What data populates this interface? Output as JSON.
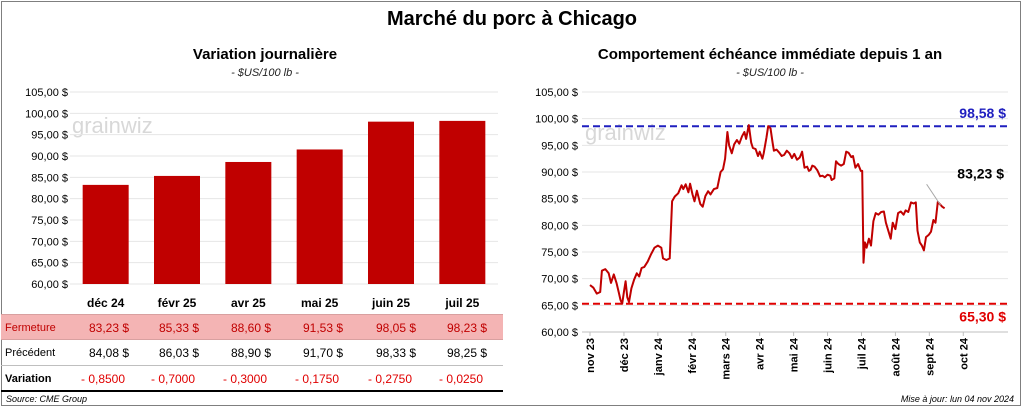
{
  "title": "Marché du porc à Chicago",
  "watermark": "grainwiz",
  "colors": {
    "bar": "#c00000",
    "line": "#c00000",
    "high": "#1f1fbf",
    "low": "#e00000",
    "fermeture_bg": "#f4b4b4",
    "variation": "#e00000"
  },
  "left_chart": {
    "title": "Variation  journalière",
    "subtitle": "- $US/100 lb -",
    "chart_data": {
      "type": "bar",
      "categories": [
        "déc 24",
        "févr 25",
        "avr 25",
        "mai 25",
        "juin 25",
        "juil 25"
      ],
      "values": [
        83.23,
        85.33,
        88.6,
        91.53,
        98.05,
        98.23
      ],
      "ylim": [
        60,
        105
      ],
      "yticks": [
        60,
        65,
        70,
        75,
        80,
        85,
        90,
        95,
        100,
        105
      ],
      "ytick_labels": [
        "60,00 $",
        "65,00 $",
        "70,00 $",
        "75,00 $",
        "80,00 $",
        "85,00 $",
        "90,00 $",
        "95,00 $",
        "100,00 $",
        "105,00 $"
      ]
    }
  },
  "table": {
    "rows": [
      {
        "label": "Fermeture",
        "values": [
          "83,23  $",
          "85,33  $",
          "88,60  $",
          "91,53  $",
          "98,05  $",
          "98,23  $"
        ]
      },
      {
        "label": "Précédent",
        "values": [
          "84,08  $",
          "86,03  $",
          "88,90  $",
          "91,70  $",
          "98,33  $",
          "98,25  $"
        ]
      },
      {
        "label": "Variation",
        "values": [
          "- 0,8500",
          "- 0,7000",
          "- 0,3000",
          "- 0,1750",
          "- 0,2750",
          "- 0,0250"
        ]
      }
    ]
  },
  "right_chart": {
    "title": "Comportement  échéance immédiate depuis 1 an",
    "subtitle": "- $US/100 lb -",
    "high_label": "98,58 $",
    "low_label": "65,30 $",
    "last_label": "83,23 $",
    "chart_data": {
      "type": "line",
      "ylim": [
        60,
        105
      ],
      "high": 98.58,
      "low": 65.3,
      "last": 83.23,
      "yticks": [
        60,
        65,
        70,
        75,
        80,
        85,
        90,
        95,
        100,
        105
      ],
      "ytick_labels": [
        "60,00 $",
        "65,00 $",
        "70,00 $",
        "75,00 $",
        "80,00 $",
        "85,00 $",
        "90,00 $",
        "95,00 $",
        "100,00 $",
        "105,00 $"
      ],
      "xticks": [
        "nov 23",
        "déc 23",
        "janv 24",
        "févr 24",
        "mars 24",
        "avr 24",
        "mai 24",
        "juin 24",
        "juil 24",
        "août 24",
        "sept 24",
        "oct 24"
      ],
      "x_domain": [
        0,
        12.2
      ],
      "points": [
        [
          0.0,
          68.8
        ],
        [
          0.1,
          68.3
        ],
        [
          0.2,
          67.2
        ],
        [
          0.3,
          67.5
        ],
        [
          0.35,
          71.5
        ],
        [
          0.45,
          71.8
        ],
        [
          0.55,
          71.0
        ],
        [
          0.62,
          69.2
        ],
        [
          0.7,
          70.8
        ],
        [
          0.78,
          69.2
        ],
        [
          0.85,
          67.4
        ],
        [
          0.9,
          66.0
        ],
        [
          0.95,
          65.3
        ],
        [
          1.0,
          67.5
        ],
        [
          1.05,
          69.5
        ],
        [
          1.1,
          66.5
        ],
        [
          1.15,
          65.6
        ],
        [
          1.22,
          68.2
        ],
        [
          1.3,
          69.8
        ],
        [
          1.38,
          71.0
        ],
        [
          1.45,
          70.4
        ],
        [
          1.52,
          72.0
        ],
        [
          1.6,
          72.2
        ],
        [
          1.7,
          73.2
        ],
        [
          1.8,
          74.6
        ],
        [
          1.9,
          75.8
        ],
        [
          2.0,
          76.2
        ],
        [
          2.1,
          75.8
        ],
        [
          2.15,
          73.8
        ],
        [
          2.25,
          73.5
        ],
        [
          2.35,
          73.8
        ],
        [
          2.42,
          84.5
        ],
        [
          2.5,
          85.4
        ],
        [
          2.6,
          86.0
        ],
        [
          2.7,
          87.5
        ],
        [
          2.75,
          86.8
        ],
        [
          2.82,
          87.7
        ],
        [
          2.9,
          86.2
        ],
        [
          2.95,
          87.8
        ],
        [
          3.02,
          85.8
        ],
        [
          3.08,
          84.5
        ],
        [
          3.15,
          86.5
        ],
        [
          3.25,
          84.0
        ],
        [
          3.32,
          83.5
        ],
        [
          3.4,
          85.5
        ],
        [
          3.48,
          86.4
        ],
        [
          3.55,
          85.8
        ],
        [
          3.65,
          86.8
        ],
        [
          3.75,
          87.0
        ],
        [
          3.85,
          90.0
        ],
        [
          3.92,
          90.5
        ],
        [
          3.98,
          92.5
        ],
        [
          4.05,
          97.5
        ],
        [
          4.1,
          95.0
        ],
        [
          4.18,
          93.5
        ],
        [
          4.25,
          95.2
        ],
        [
          4.33,
          96.0
        ],
        [
          4.4,
          95.3
        ],
        [
          4.48,
          96.7
        ],
        [
          4.55,
          97.5
        ],
        [
          4.6,
          96.2
        ],
        [
          4.68,
          98.8
        ],
        [
          4.75,
          95.5
        ],
        [
          4.8,
          94.5
        ],
        [
          4.88,
          94.3
        ],
        [
          4.95,
          93.0
        ],
        [
          5.0,
          93.8
        ],
        [
          5.08,
          92.5
        ],
        [
          5.12,
          93.5
        ],
        [
          5.2,
          96.5
        ],
        [
          5.25,
          98.6
        ],
        [
          5.32,
          98.2
        ],
        [
          5.38,
          95.5
        ],
        [
          5.42,
          94.0
        ],
        [
          5.5,
          94.2
        ],
        [
          5.58,
          93.6
        ],
        [
          5.65,
          93.0
        ],
        [
          5.72,
          93.2
        ],
        [
          5.8,
          94.0
        ],
        [
          5.88,
          93.5
        ],
        [
          5.95,
          92.6
        ],
        [
          6.02,
          93.4
        ],
        [
          6.1,
          92.3
        ],
        [
          6.18,
          92.7
        ],
        [
          6.25,
          93.8
        ],
        [
          6.32,
          90.8
        ],
        [
          6.4,
          91.0
        ],
        [
          6.45,
          90.2
        ],
        [
          6.5,
          90.4
        ],
        [
          6.55,
          91.2
        ],
        [
          6.62,
          91.0
        ],
        [
          6.7,
          90.3
        ],
        [
          6.78,
          89.2
        ],
        [
          6.85,
          89.3
        ],
        [
          6.92,
          89.0
        ],
        [
          7.0,
          89.5
        ],
        [
          7.08,
          89.3
        ],
        [
          7.12,
          88.5
        ],
        [
          7.2,
          88.8
        ],
        [
          7.25,
          92.0
        ],
        [
          7.32,
          91.5
        ],
        [
          7.4,
          91.2
        ],
        [
          7.48,
          91.5
        ],
        [
          7.55,
          93.8
        ],
        [
          7.62,
          93.6
        ],
        [
          7.7,
          92.8
        ],
        [
          7.75,
          93.0
        ],
        [
          7.82,
          90.8
        ],
        [
          7.9,
          91.5
        ],
        [
          7.98,
          90.2
        ],
        [
          8.02,
          90.2
        ],
        [
          8.06,
          73.0
        ],
        [
          8.1,
          76.8
        ],
        [
          8.15,
          75.8
        ],
        [
          8.22,
          77.5
        ],
        [
          8.28,
          76.2
        ],
        [
          8.35,
          80.8
        ],
        [
          8.42,
          82.3
        ],
        [
          8.5,
          82.0
        ],
        [
          8.58,
          82.5
        ],
        [
          8.66,
          82.6
        ],
        [
          8.72,
          80.5
        ],
        [
          8.8,
          78.8
        ],
        [
          8.86,
          77.5
        ],
        [
          8.92,
          80.5
        ],
        [
          9.0,
          79.3
        ],
        [
          9.08,
          82.3
        ],
        [
          9.16,
          82.6
        ],
        [
          9.24,
          82.0
        ],
        [
          9.3,
          82.8
        ],
        [
          9.38,
          82.5
        ],
        [
          9.46,
          84.3
        ],
        [
          9.54,
          84.1
        ],
        [
          9.6,
          84.3
        ],
        [
          9.65,
          79.0
        ],
        [
          9.72,
          76.8
        ],
        [
          9.78,
          76.2
        ],
        [
          9.84,
          75.3
        ],
        [
          9.9,
          77.8
        ],
        [
          9.98,
          78.2
        ],
        [
          10.05,
          78.8
        ],
        [
          10.12,
          81.0
        ],
        [
          10.18,
          80.5
        ],
        [
          10.25,
          84.4
        ],
        [
          10.32,
          83.9
        ],
        [
          10.38,
          83.5
        ],
        [
          10.45,
          83.2
        ]
      ]
    }
  },
  "footer": {
    "source": "Source: CME Group",
    "updated": "Mise à jour: lun 04 nov 2024"
  }
}
